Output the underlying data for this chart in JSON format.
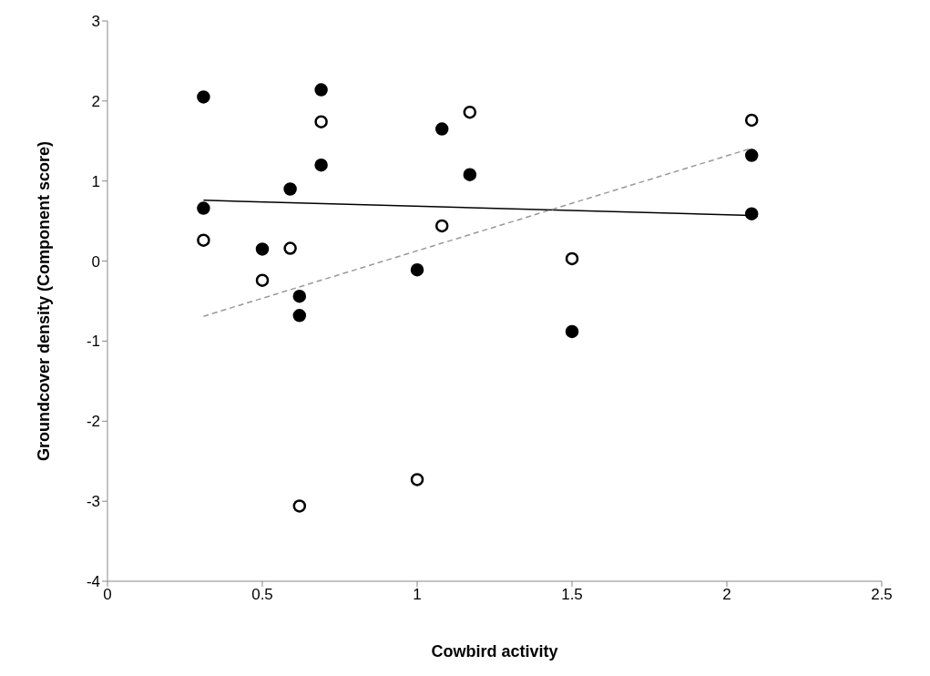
{
  "chart_data": {
    "type": "scatter",
    "xlabel": "Cowbird activity",
    "ylabel": "Groundcover density (Component score)",
    "xlim": [
      0,
      2.5
    ],
    "xticks": [
      0,
      0.5,
      1,
      1.5,
      2,
      2.5
    ],
    "ylim": [
      -4,
      3
    ],
    "yticks": [
      -4,
      -3,
      -2,
      -1,
      0,
      1,
      2,
      3
    ],
    "grid": false,
    "legend": false,
    "marker": "circle",
    "series": [
      {
        "color": "#000000",
        "x": [
          0.31,
          0.31,
          0.5,
          0.59,
          0.62,
          0.62,
          0.69,
          0.69,
          1.0,
          1.08,
          1.17,
          1.5,
          2.08,
          2.08
        ],
        "values": [
          2.05,
          0.66,
          0.15,
          0.9,
          -0.44,
          -0.68,
          2.14,
          1.2,
          -0.11,
          1.65,
          1.08,
          -0.88,
          1.32,
          0.59
        ]
      },
      {
        "color": "#ffffff",
        "x": [
          0.31,
          0.5,
          0.59,
          0.62,
          0.69,
          1.0,
          1.08,
          1.17,
          1.5,
          2.08
        ],
        "values": [
          0.26,
          -0.24,
          0.16,
          -3.06,
          1.74,
          -2.73,
          0.44,
          1.86,
          0.03,
          1.76
        ]
      },
      {
        "type": "line",
        "color": "#000000",
        "line_style": "solid",
        "marker": "none",
        "x": [
          0.31,
          2.08
        ],
        "values": [
          0.76,
          0.57
        ]
      },
      {
        "type": "line",
        "color": "#999999",
        "line_style": "dashed",
        "marker": "none",
        "x": [
          0.31,
          2.08
        ],
        "values": [
          -0.69,
          1.41
        ]
      }
    ]
  }
}
